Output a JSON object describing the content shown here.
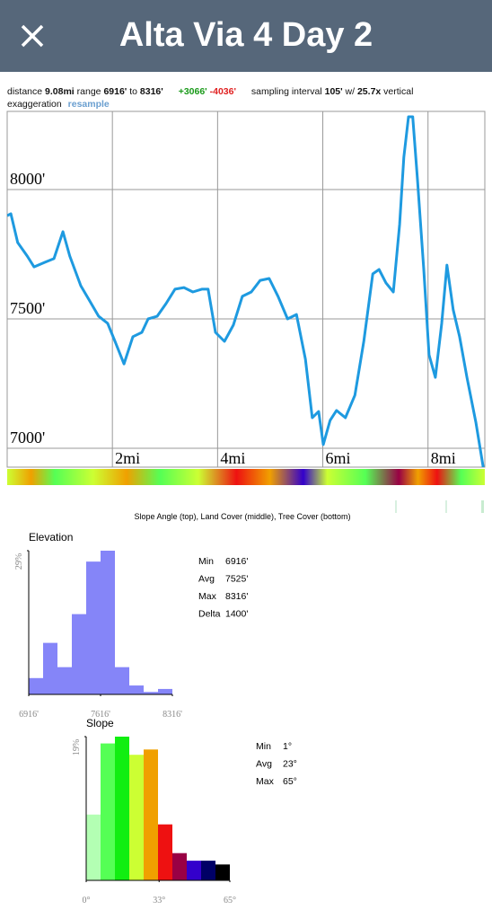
{
  "header": {
    "title": "Alta Via 4 Day 2"
  },
  "info": {
    "distance_label": "distance",
    "distance": "9.08mi",
    "range_label": "range",
    "range_min": "6916'",
    "range_to": "to",
    "range_max": "8316'",
    "gain": "+3066'",
    "loss": "-4036'",
    "interval_label": "sampling interval",
    "interval": "105'",
    "ratio_label": "w/",
    "ratio": "25.7x",
    "exaggeration_label": "vertical exaggeration",
    "resample": "resample"
  },
  "strip_caption": "Slope Angle (top), Land Cover (middle), Tree Cover (bottom)",
  "chart_data": [
    {
      "type": "line",
      "color": "#1e9ae0",
      "x": [
        0,
        0.07,
        0.2,
        0.38,
        0.51,
        0.72,
        0.89,
        1.06,
        1.19,
        1.4,
        1.57,
        1.74,
        1.91,
        2.05,
        2.22,
        2.39,
        2.56,
        2.68,
        2.85,
        3.02,
        3.19,
        3.36,
        3.53,
        3.7,
        3.82,
        3.96,
        4.13,
        4.3,
        4.47,
        4.64,
        4.81,
        4.98,
        5.15,
        5.33,
        5.5,
        5.67,
        5.8,
        5.92,
        6.01,
        6.14,
        6.26,
        6.43,
        6.61,
        6.78,
        6.95,
        7.07,
        7.2,
        7.34,
        7.46,
        7.54,
        7.63,
        7.71,
        7.8,
        7.92,
        8.02,
        8.14,
        8.26,
        8.36,
        8.48,
        8.6,
        8.74,
        8.91,
        9.05
      ],
      "values": [
        7899,
        7906,
        7795,
        7743,
        7701,
        7719,
        7733,
        7837,
        7743,
        7628,
        7569,
        7510,
        7483,
        7413,
        7326,
        7431,
        7448,
        7500,
        7510,
        7559,
        7615,
        7621,
        7604,
        7615,
        7615,
        7448,
        7413,
        7476,
        7587,
        7604,
        7649,
        7656,
        7587,
        7500,
        7517,
        7344,
        7118,
        7142,
        7014,
        7108,
        7146,
        7118,
        7205,
        7413,
        7674,
        7691,
        7639,
        7604,
        7865,
        8125,
        8281,
        8281,
        8038,
        7691,
        7361,
        7274,
        7483,
        7708,
        7535,
        7431,
        7274,
        7101,
        6927
      ],
      "xlim": [
        0,
        9.08
      ],
      "ylim": [
        6927,
        8302
      ],
      "xticks": [
        {
          "value": 2,
          "label": "2mi"
        },
        {
          "value": 4,
          "label": "4mi"
        },
        {
          "value": 6,
          "label": "6mi"
        },
        {
          "value": 8,
          "label": "8mi"
        }
      ],
      "yticks": [
        {
          "value": 7000,
          "label": "7000'"
        },
        {
          "value": 7500,
          "label": "7500'"
        },
        {
          "value": 8000,
          "label": "8000'"
        }
      ],
      "grid": true
    },
    {
      "type": "histogram",
      "title": "Elevation",
      "color": "#8585f8",
      "bins": [
        6916,
        7056,
        7196,
        7336,
        7476,
        7616,
        7756,
        7896,
        8036,
        8176,
        8316
      ],
      "values": [
        3.3,
        10.4,
        5.5,
        16.2,
        26.8,
        29,
        5.5,
        1.8,
        0.5,
        1.1
      ],
      "xlim": [
        6916,
        8316
      ],
      "ylim": [
        0,
        29
      ],
      "xticks": [
        {
          "value": 6916,
          "label": "6916'"
        },
        {
          "value": 7616,
          "label": "7616'"
        },
        {
          "value": 8316,
          "label": "8316'"
        }
      ],
      "yticks": [
        {
          "value": 29,
          "label": "29%"
        }
      ],
      "stats": [
        {
          "label": "Min",
          "value": "6916'"
        },
        {
          "label": "Avg",
          "value": "7525'"
        },
        {
          "label": "Max",
          "value": "8316'"
        },
        {
          "label": "Delta",
          "value": "1400'"
        }
      ]
    },
    {
      "type": "histogram",
      "title": "Slope",
      "colors": [
        "#b3ffb3",
        "#55ff55",
        "#11ee11",
        "#ccff33",
        "#f0a000",
        "#ee1111",
        "#990044",
        "#3300cc",
        "#000066",
        "#000000"
      ],
      "bins": [
        0,
        6.5,
        13,
        19.5,
        26,
        32.5,
        39,
        45.5,
        52,
        58.5,
        65
      ],
      "values": [
        8.7,
        18.1,
        19,
        16.6,
        17.3,
        7.4,
        3.6,
        2.6,
        2.6,
        2.1
      ],
      "xlim": [
        0,
        65
      ],
      "ylim": [
        0,
        19
      ],
      "xticks": [
        {
          "value": 0,
          "label": "0°"
        },
        {
          "value": 33,
          "label": "33°"
        },
        {
          "value": 65,
          "label": "65°"
        }
      ],
      "yticks": [
        {
          "value": 19,
          "label": "19%"
        }
      ],
      "stats": [
        {
          "label": "Min",
          "value": "1°"
        },
        {
          "label": "Avg",
          "value": "23°"
        },
        {
          "label": "Max",
          "value": "65°"
        }
      ]
    }
  ]
}
